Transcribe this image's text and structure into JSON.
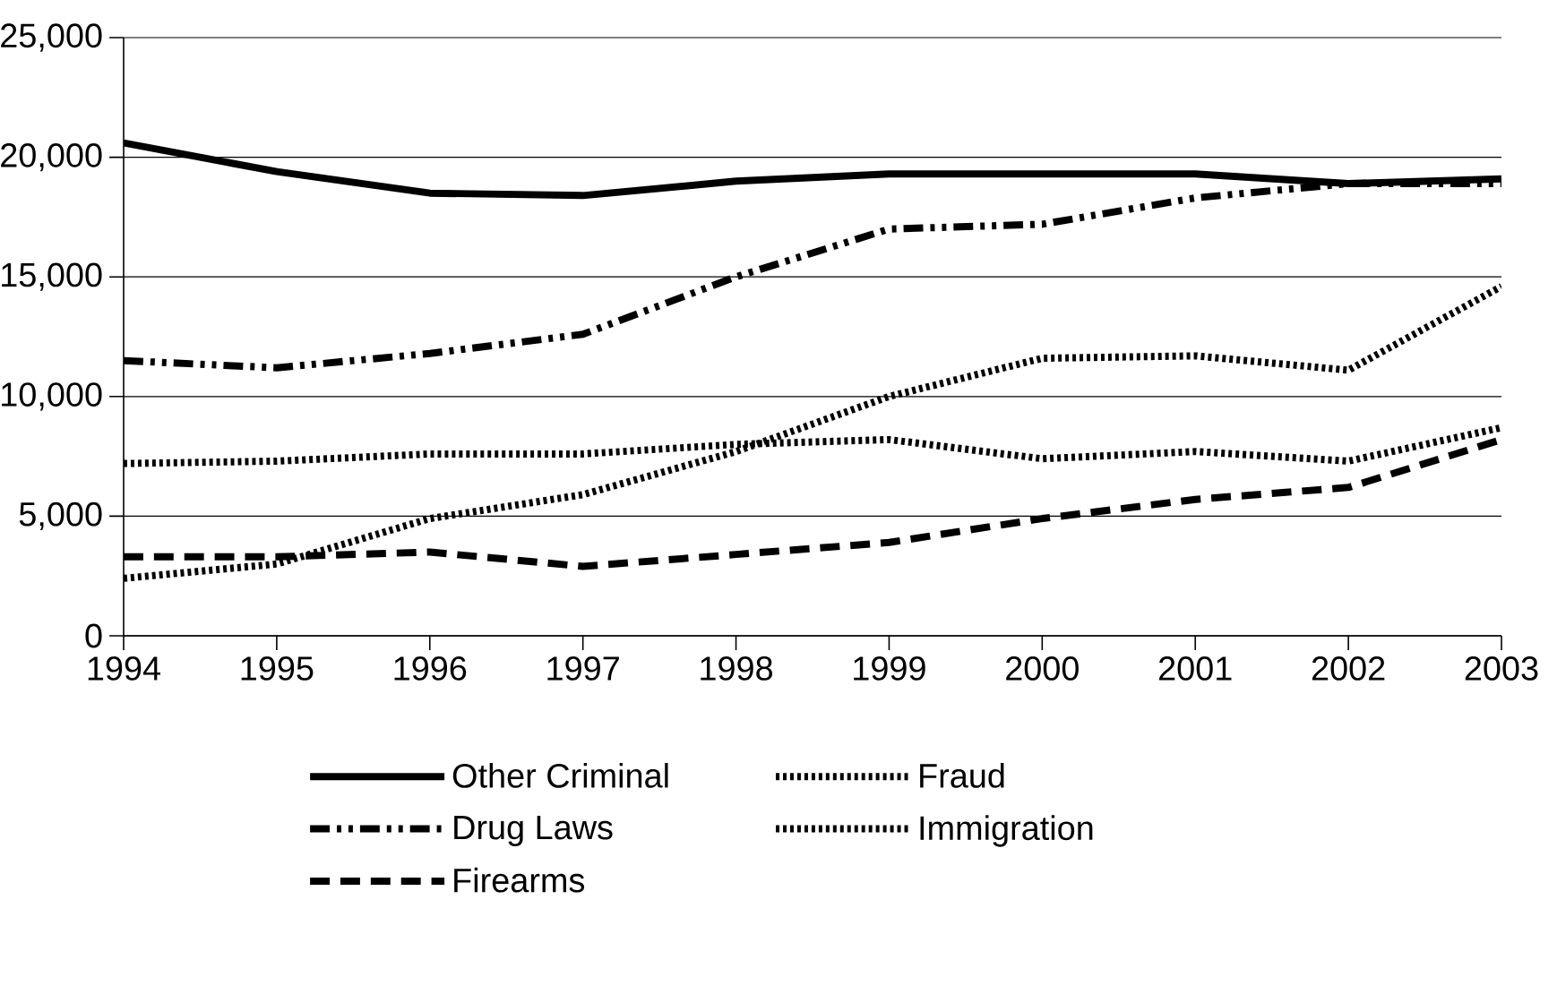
{
  "chart_data": {
    "type": "line",
    "x": [
      1994,
      1995,
      1996,
      1997,
      1998,
      1999,
      2000,
      2001,
      2002,
      2003
    ],
    "series": [
      {
        "name": "Other Criminal",
        "color": "#000000",
        "line_style": "solid",
        "values": [
          20600,
          19400,
          18500,
          18400,
          19000,
          19300,
          19300,
          19300,
          18900,
          19100
        ]
      },
      {
        "name": "Fraud",
        "color": "#000000",
        "line_style": "dotted",
        "values": [
          7200,
          7300,
          7600,
          7600,
          8000,
          8200,
          7400,
          7700,
          7300,
          8700
        ]
      },
      {
        "name": "Drug Laws",
        "color": "#000000",
        "line_style": "dashdot",
        "values": [
          11500,
          11200,
          11800,
          12600,
          15000,
          17000,
          17200,
          18300,
          18900,
          18900
        ]
      },
      {
        "name": "Immigration",
        "color": "#000000",
        "line_style": "dotted",
        "values": [
          2400,
          3000,
          4900,
          5900,
          7700,
          10000,
          11600,
          11700,
          11100,
          14600
        ]
      },
      {
        "name": "Firearms",
        "color": "#000000",
        "line_style": "dashed",
        "values": [
          3300,
          3300,
          3500,
          2900,
          3400,
          3900,
          4900,
          5700,
          6200,
          8200
        ]
      }
    ],
    "xlim": [
      1994,
      2003
    ],
    "xticks": [
      1994,
      1995,
      1996,
      1997,
      1998,
      1999,
      2000,
      2001,
      2002,
      2003
    ],
    "ylim": [
      0,
      25000
    ],
    "yticks": [
      0,
      {
        "value": 5000,
        "label": "5,000"
      },
      {
        "value": 10000,
        "label": "10,000"
      },
      {
        "value": 15000,
        "label": "15,000"
      },
      {
        "value": 20000,
        "label": "20,000"
      },
      {
        "value": 25000,
        "label": "25,000"
      }
    ],
    "grid": "y",
    "legend": "bottom",
    "marker": "none"
  }
}
